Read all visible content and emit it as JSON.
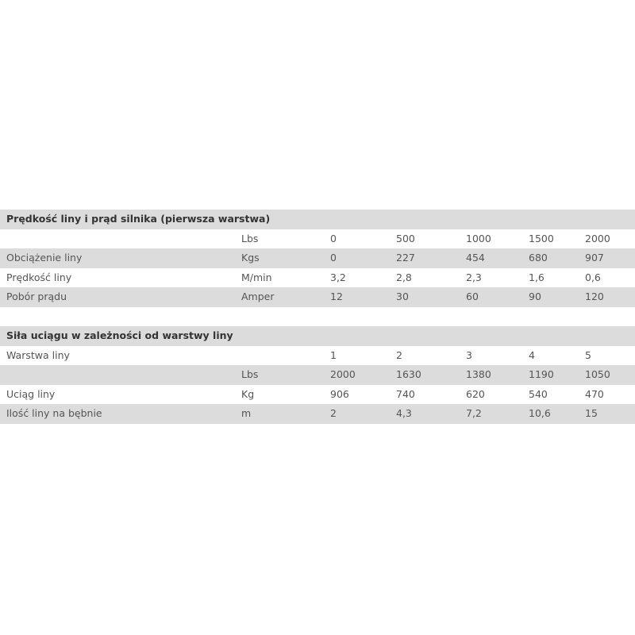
{
  "tables": [
    {
      "title": "Prędkość liny i prąd silnika (pierwsza warstwa)",
      "rows": [
        {
          "unit": "Lbs",
          "values": [
            "0",
            "500",
            "1000",
            "1500",
            "2000"
          ]
        },
        {
          "label": "Obciążenie liny",
          "unit": "Kgs",
          "values": [
            "0",
            "227",
            "454",
            "680",
            "907"
          ]
        },
        {
          "label": "Prędkość liny",
          "unit": "M/min",
          "values": [
            "3,2",
            "2,8",
            "2,3",
            "1,6",
            "0,6"
          ]
        },
        {
          "label": "Pobór prądu",
          "unit": "Amper",
          "values": [
            "12",
            "30",
            "60",
            "90",
            "120"
          ]
        }
      ]
    },
    {
      "title": "Siła uciągu w zależności od warstwy liny",
      "rows": [
        {
          "label": "Warstwa liny",
          "values": [
            "1",
            "2",
            "3",
            "4",
            "5"
          ]
        },
        {
          "unit": "Lbs",
          "values": [
            "2000",
            "1630",
            "1380",
            "1190",
            "1050"
          ]
        },
        {
          "label": "Uciąg liny",
          "unit": "Kg",
          "values": [
            "906",
            "740",
            "620",
            "540",
            "470"
          ]
        },
        {
          "label": "Ilość liny na bębnie",
          "unit": "m",
          "values": [
            "2",
            "4,3",
            "7,2",
            "10,6",
            "15"
          ]
        }
      ]
    }
  ]
}
